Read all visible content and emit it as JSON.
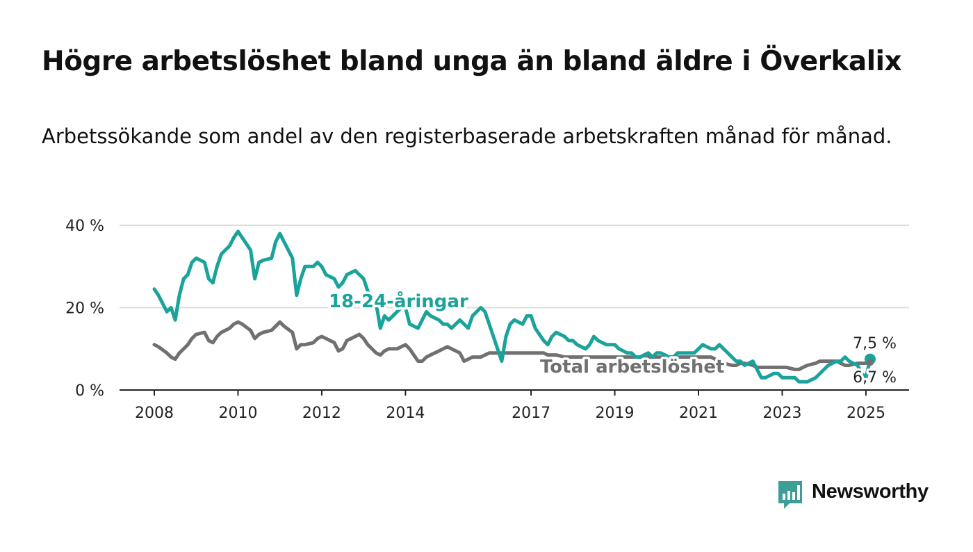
{
  "title": "Högre arbetslöshet bland unga än bland äldre i Överkalix",
  "subtitle": "Arbetssökande som andel av den registerbaserade arbetskraften månad för månad.",
  "brand": {
    "name": "Newsworthy",
    "color": "#3d9e98"
  },
  "colors": {
    "young": "#1aa39a",
    "total": "#707070",
    "grid": "#dddddd",
    "axis": "#222222"
  },
  "chart_data": {
    "type": "line",
    "title": "Högre arbetslöshet bland unga än bland äldre i Överkalix",
    "xlim": [
      2008.0,
      2025.2
    ],
    "ylim": [
      0,
      40
    ],
    "x_ticks": [
      2008,
      2010,
      2012,
      2014,
      2017,
      2019,
      2021,
      2023,
      2025
    ],
    "y_ticks": [
      0,
      20,
      40
    ],
    "y_tick_labels": [
      "0 %",
      "20 %",
      "40 %"
    ],
    "grid": true,
    "x_interval": "monthly",
    "series": [
      {
        "name": "18-24-åringar",
        "end_label": "7,5 %",
        "x": [
          2008.0,
          2008.1,
          2008.3,
          2008.4,
          2008.5,
          2008.6,
          2008.7,
          2008.8,
          2008.9,
          2009.0,
          2009.2,
          2009.3,
          2009.4,
          2009.5,
          2009.6,
          2009.8,
          2009.9,
          2010.0,
          2010.1,
          2010.3,
          2010.4,
          2010.5,
          2010.6,
          2010.8,
          2010.9,
          2011.0,
          2011.1,
          2011.3,
          2011.4,
          2011.5,
          2011.6,
          2011.8,
          2011.9,
          2012.0,
          2012.1,
          2012.3,
          2012.4,
          2012.5,
          2012.6,
          2012.8,
          2012.9,
          2013.0,
          2013.1,
          2013.3,
          2013.4,
          2013.5,
          2013.6,
          2013.8,
          2013.9,
          2014.0,
          2014.1,
          2014.3,
          2014.4,
          2014.5,
          2014.6,
          2014.8,
          2014.9,
          2015.0,
          2015.1,
          2015.3,
          2015.4,
          2015.5,
          2015.6,
          2015.8,
          2015.9,
          2016.0,
          2016.1,
          2016.3,
          2016.4,
          2016.5,
          2016.6,
          2016.8,
          2016.9,
          2017.0,
          2017.1,
          2017.3,
          2017.4,
          2017.5,
          2017.6,
          2017.8,
          2017.9,
          2018.0,
          2018.1,
          2018.3,
          2018.4,
          2018.5,
          2018.6,
          2018.8,
          2018.9,
          2019.0,
          2019.1,
          2019.3,
          2019.4,
          2019.5,
          2019.6,
          2019.8,
          2019.9,
          2020.0,
          2020.1,
          2020.3,
          2020.4,
          2020.5,
          2020.6,
          2020.8,
          2020.9,
          2021.0,
          2021.1,
          2021.3,
          2021.4,
          2021.5,
          2021.6,
          2021.8,
          2021.9,
          2022.0,
          2022.1,
          2022.3,
          2022.4,
          2022.5,
          2022.6,
          2022.8,
          2022.9,
          2023.0,
          2023.1,
          2023.3,
          2023.4,
          2023.5,
          2023.6,
          2023.8,
          2023.9,
          2024.0,
          2024.1,
          2024.3,
          2024.4,
          2024.5,
          2024.6,
          2024.8,
          2024.9,
          2025.0,
          2025.1
        ],
        "values": [
          24.5,
          23,
          19,
          20,
          17,
          23,
          27,
          28,
          31,
          32,
          31,
          27,
          26,
          30,
          33,
          35,
          37,
          38.5,
          37,
          34,
          27,
          31,
          31.5,
          32,
          36,
          38,
          36,
          32,
          23,
          27,
          30,
          30,
          31,
          30,
          28,
          27,
          25,
          26,
          28,
          29,
          28,
          27,
          24,
          21,
          15,
          18,
          17,
          19,
          20,
          20,
          16,
          15,
          17,
          19,
          18,
          17,
          16,
          16,
          15,
          17,
          16,
          15,
          18,
          20,
          19,
          16,
          13,
          7,
          13,
          16,
          17,
          16,
          18,
          18,
          15,
          12,
          11,
          13,
          14,
          13,
          12,
          12,
          11,
          10,
          11,
          13,
          12,
          11,
          11,
          11,
          10,
          9,
          9,
          8,
          8,
          9,
          8,
          9,
          9,
          8,
          8,
          9,
          9,
          9,
          9,
          10,
          11,
          10,
          10,
          11,
          10,
          8,
          7,
          7,
          6,
          7,
          5,
          3,
          3,
          4,
          4,
          3,
          3,
          3,
          2,
          2,
          2,
          3,
          4,
          5,
          6,
          7,
          7,
          8,
          7,
          6,
          4,
          3,
          7.5
        ]
      },
      {
        "name": "Total arbetslöshet",
        "end_label": "6,7 %",
        "x": [
          2008.0,
          2008.1,
          2008.3,
          2008.4,
          2008.5,
          2008.6,
          2008.7,
          2008.8,
          2008.9,
          2009.0,
          2009.2,
          2009.3,
          2009.4,
          2009.5,
          2009.6,
          2009.8,
          2009.9,
          2010.0,
          2010.1,
          2010.3,
          2010.4,
          2010.5,
          2010.6,
          2010.8,
          2010.9,
          2011.0,
          2011.1,
          2011.3,
          2011.4,
          2011.5,
          2011.6,
          2011.8,
          2011.9,
          2012.0,
          2012.1,
          2012.3,
          2012.4,
          2012.5,
          2012.6,
          2012.8,
          2012.9,
          2013.0,
          2013.1,
          2013.3,
          2013.4,
          2013.5,
          2013.6,
          2013.8,
          2013.9,
          2014.0,
          2014.1,
          2014.3,
          2014.4,
          2014.5,
          2014.6,
          2014.8,
          2014.9,
          2015.0,
          2015.1,
          2015.3,
          2015.4,
          2015.5,
          2015.6,
          2015.8,
          2015.9,
          2016.0,
          2016.1,
          2016.3,
          2016.4,
          2016.5,
          2016.6,
          2016.8,
          2016.9,
          2017.0,
          2017.1,
          2017.3,
          2017.4,
          2017.5,
          2017.6,
          2017.8,
          2017.9,
          2018.0,
          2018.1,
          2018.3,
          2018.4,
          2018.5,
          2018.6,
          2018.8,
          2018.9,
          2019.0,
          2019.1,
          2019.3,
          2019.4,
          2019.5,
          2019.6,
          2019.8,
          2019.9,
          2020.0,
          2020.1,
          2020.3,
          2020.4,
          2020.5,
          2020.6,
          2020.8,
          2020.9,
          2021.0,
          2021.1,
          2021.3,
          2021.4,
          2021.5,
          2021.6,
          2021.8,
          2021.9,
          2022.0,
          2022.1,
          2022.3,
          2022.4,
          2022.5,
          2022.6,
          2022.8,
          2022.9,
          2023.0,
          2023.1,
          2023.3,
          2023.4,
          2023.5,
          2023.6,
          2023.8,
          2023.9,
          2024.0,
          2024.1,
          2024.3,
          2024.4,
          2024.5,
          2024.6,
          2024.8,
          2024.9,
          2025.0,
          2025.1
        ],
        "values": [
          11,
          10.5,
          9,
          8,
          7.5,
          9,
          10,
          11,
          12.5,
          13.5,
          14,
          12,
          11.5,
          13,
          14,
          15,
          16,
          16.5,
          16,
          14.5,
          12.5,
          13.5,
          14,
          14.5,
          15.5,
          16.5,
          15.5,
          14,
          10,
          11,
          11,
          11.5,
          12.5,
          13,
          12.5,
          11.5,
          9.5,
          10,
          12,
          13,
          13.5,
          12.5,
          11,
          9,
          8.5,
          9.5,
          10,
          10,
          10.5,
          11,
          10,
          7,
          7,
          8,
          8.5,
          9.5,
          10,
          10.5,
          10,
          9,
          7,
          7.5,
          8,
          8,
          8.5,
          9,
          9,
          9,
          9,
          9,
          9,
          9,
          9,
          9,
          9,
          9,
          8.5,
          8.5,
          8.5,
          8,
          8,
          8,
          8,
          8,
          8,
          8,
          8,
          8,
          8,
          8,
          8,
          8,
          8,
          8,
          8,
          8,
          8,
          8,
          8,
          8,
          8,
          8,
          8,
          8,
          8,
          8,
          8,
          8,
          7.5,
          7,
          6.5,
          6,
          6,
          6.5,
          6.5,
          6,
          5.5,
          5.5,
          5.5,
          5.5,
          5.5,
          5.5,
          5.5,
          5,
          5,
          5.5,
          6,
          6.5,
          7,
          7,
          7,
          7,
          6.5,
          6,
          6,
          6.5,
          6.5,
          6.5,
          6.7
        ]
      }
    ]
  }
}
